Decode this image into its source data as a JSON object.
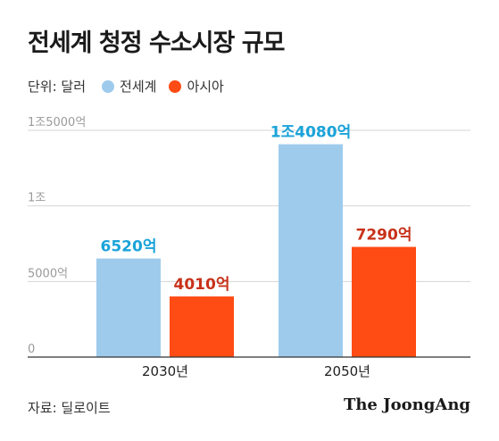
{
  "title": "전세계 청정 수소시장 규모",
  "legend": {
    "unit": "단위: 달러",
    "items": [
      {
        "label": "전세계",
        "color": "#9ecbec"
      },
      {
        "label": "아시아",
        "color": "#ff4b14"
      }
    ]
  },
  "source": "자료: 딜로이트",
  "brand": "The JoongAng",
  "chart_data": {
    "type": "bar",
    "categories": [
      "2030년",
      "2050년"
    ],
    "series": [
      {
        "name": "전세계",
        "color": "#9ecbec",
        "label_color": "#1aa3d9",
        "values": [
          6520,
          14080
        ],
        "labels": [
          "6520억",
          "1조4080억"
        ]
      },
      {
        "name": "아시아",
        "color": "#ff4b14",
        "label_color": "#c8321a",
        "values": [
          4010,
          7290
        ],
        "labels": [
          "4010억",
          "7290억"
        ]
      }
    ],
    "ylim": [
      0,
      15000
    ],
    "yticks": [
      {
        "value": 0,
        "label": "0"
      },
      {
        "value": 5000,
        "label": "5000억"
      },
      {
        "value": 10000,
        "label": "1조"
      },
      {
        "value": 15000,
        "label": "1조5000억"
      }
    ],
    "grid": true,
    "legend_position": "top-left"
  }
}
